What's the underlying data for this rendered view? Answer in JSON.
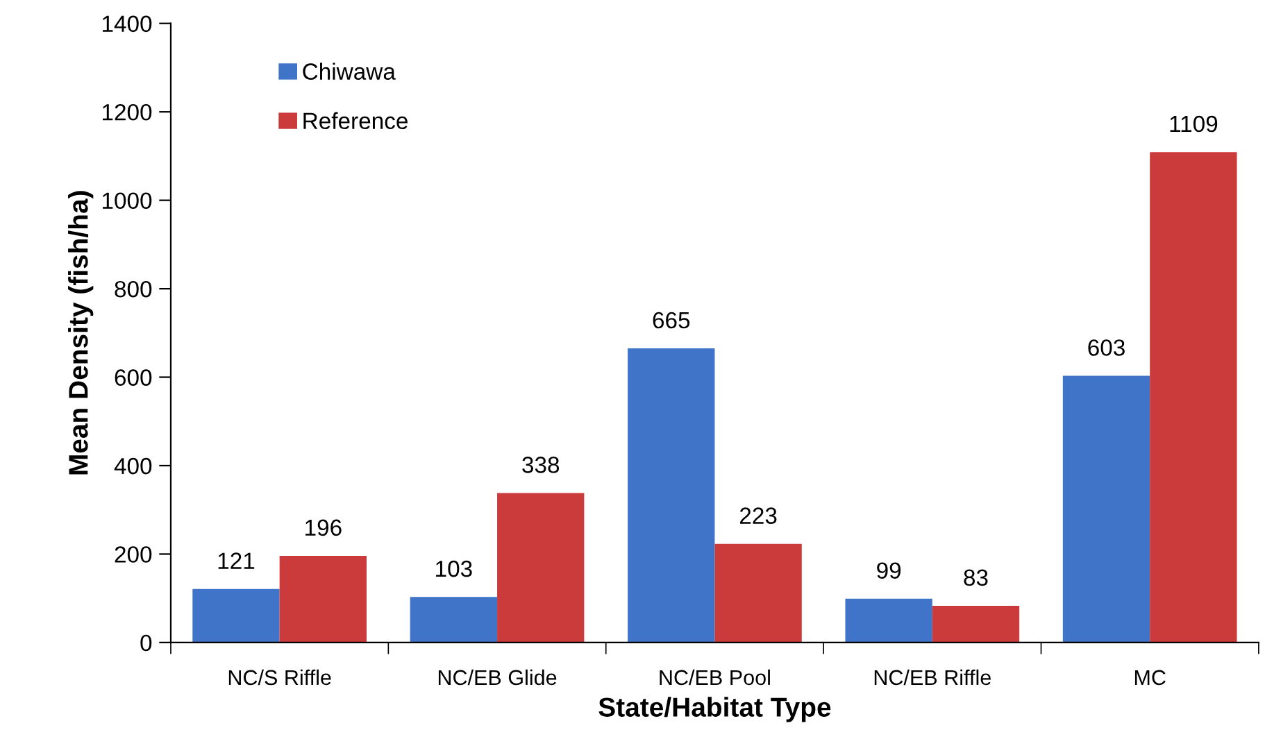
{
  "chart_data": {
    "type": "bar",
    "xlabel": "State/Habitat Type",
    "ylabel": "Mean Density (fish/ha)",
    "categories": [
      "NC/S Riffle",
      "NC/EB Glide",
      "NC/EB Pool",
      "NC/EB Riffle",
      "MC"
    ],
    "series": [
      {
        "name": "Chiwawa",
        "color": "#3f74c9",
        "values": [
          121,
          103,
          665,
          99,
          603
        ]
      },
      {
        "name": "Reference",
        "color": "#cc3b3b",
        "values": [
          196,
          338,
          223,
          83,
          1109
        ]
      }
    ],
    "ylim": [
      0,
      1400
    ],
    "yticks": [
      0,
      200,
      400,
      600,
      800,
      1000,
      1200,
      1400
    ],
    "data_labels": true,
    "grid": false,
    "legend": "top left"
  }
}
